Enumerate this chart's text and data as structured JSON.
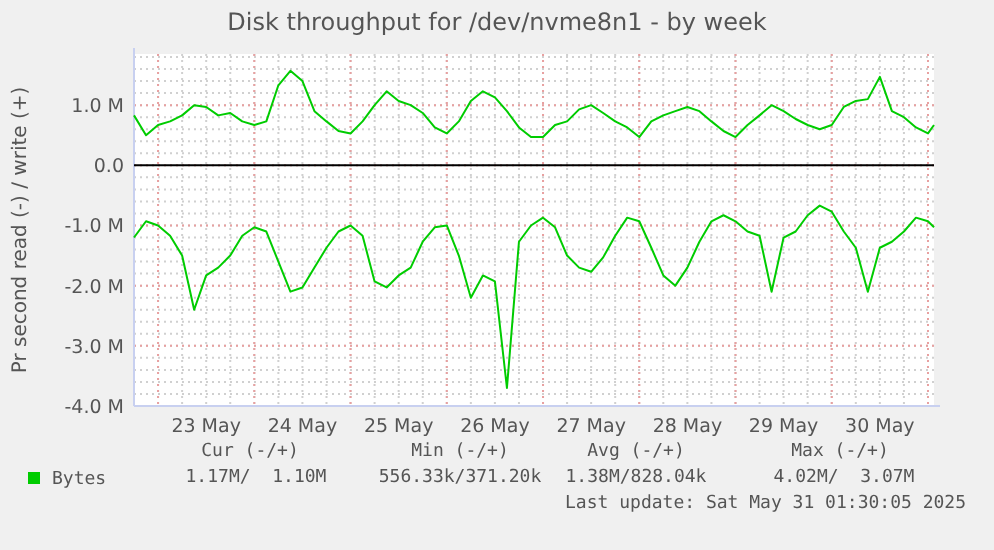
{
  "chart_data": {
    "type": "line",
    "title": "Disk throughput for /dev/nvme8n1 - by week",
    "ylabel": "Pr second read (-) / write (+)",
    "x": [
      "2025-05-22T18:00",
      "2025-05-22T21:00",
      "2025-05-23T00:00",
      "2025-05-23T03:00",
      "2025-05-23T06:00",
      "2025-05-23T09:00",
      "2025-05-23T12:00",
      "2025-05-23T15:00",
      "2025-05-23T18:00",
      "2025-05-23T21:00",
      "2025-05-24T00:00",
      "2025-05-24T03:00",
      "2025-05-24T06:00",
      "2025-05-24T09:00",
      "2025-05-24T12:00",
      "2025-05-24T15:00",
      "2025-05-24T18:00",
      "2025-05-24T21:00",
      "2025-05-25T00:00",
      "2025-05-25T03:00",
      "2025-05-25T06:00",
      "2025-05-25T09:00",
      "2025-05-25T12:00",
      "2025-05-25T15:00",
      "2025-05-25T18:00",
      "2025-05-25T21:00",
      "2025-05-26T00:00",
      "2025-05-26T03:00",
      "2025-05-26T06:00",
      "2025-05-26T09:00",
      "2025-05-26T12:00",
      "2025-05-26T15:00",
      "2025-05-26T18:00",
      "2025-05-26T21:00",
      "2025-05-27T00:00",
      "2025-05-27T03:00",
      "2025-05-27T06:00",
      "2025-05-27T09:00",
      "2025-05-27T12:00",
      "2025-05-27T15:00",
      "2025-05-27T18:00",
      "2025-05-27T21:00",
      "2025-05-28T00:00",
      "2025-05-28T03:00",
      "2025-05-28T06:00",
      "2025-05-28T09:00",
      "2025-05-28T12:00",
      "2025-05-28T15:00",
      "2025-05-28T18:00",
      "2025-05-28T21:00",
      "2025-05-29T00:00",
      "2025-05-29T03:00",
      "2025-05-29T06:00",
      "2025-05-29T09:00",
      "2025-05-29T12:00",
      "2025-05-29T15:00",
      "2025-05-29T18:00",
      "2025-05-29T21:00",
      "2025-05-30T00:00",
      "2025-05-30T03:00",
      "2025-05-30T06:00",
      "2025-05-30T09:00",
      "2025-05-30T12:00",
      "2025-05-30T15:00",
      "2025-05-30T18:00",
      "2025-05-30T21:00",
      "2025-05-31T00:00",
      "2025-05-31T01:30"
    ],
    "series": [
      {
        "name": "Bytes",
        "color": "#00cc00",
        "values": [
          0.83,
          0.5,
          0.67,
          0.73,
          0.83,
          1.0,
          0.97,
          0.83,
          0.87,
          0.73,
          0.67,
          0.73,
          1.33,
          1.57,
          1.4,
          0.9,
          0.73,
          0.57,
          0.53,
          0.73,
          1.0,
          1.23,
          1.07,
          1.0,
          0.87,
          0.63,
          0.53,
          0.73,
          1.07,
          1.23,
          1.13,
          0.9,
          0.63,
          0.47,
          0.47,
          0.67,
          0.73,
          0.93,
          1.0,
          0.87,
          0.73,
          0.63,
          0.47,
          0.73,
          0.83,
          0.9,
          0.97,
          0.9,
          0.73,
          0.57,
          0.47,
          0.67,
          0.83,
          1.0,
          0.9,
          0.77,
          0.67,
          0.6,
          0.67,
          0.97,
          1.07,
          1.1,
          1.47,
          0.9,
          0.8,
          0.63,
          0.53,
          0.67
        ]
      },
      {
        "color": "#00cc00",
        "values": [
          -1.2,
          -0.93,
          -1.0,
          -1.17,
          -1.5,
          -2.4,
          -1.83,
          -1.7,
          -1.5,
          -1.17,
          -1.03,
          -1.1,
          -1.6,
          -2.1,
          -2.03,
          -1.7,
          -1.37,
          -1.1,
          -1.0,
          -1.17,
          -1.93,
          -2.03,
          -1.83,
          -1.7,
          -1.27,
          -1.03,
          -1.0,
          -1.5,
          -2.2,
          -1.83,
          -1.93,
          -3.7,
          -1.27,
          -1.0,
          -0.87,
          -1.03,
          -1.5,
          -1.7,
          -1.77,
          -1.53,
          -1.17,
          -0.87,
          -0.93,
          -1.37,
          -1.83,
          -2.0,
          -1.7,
          -1.27,
          -0.93,
          -0.83,
          -0.93,
          -1.1,
          -1.17,
          -2.1,
          -1.2,
          -1.1,
          -0.83,
          -0.67,
          -0.77,
          -1.1,
          -1.37,
          -2.1,
          -1.37,
          -1.27,
          -1.1,
          -0.87,
          -0.93,
          -1.03
        ]
      }
    ],
    "xlim": [
      "2025-05-22T18:00",
      "2025-05-31T01:30"
    ],
    "xticks": [
      {
        "value": "2025-05-23T00:00",
        "label": null
      },
      {
        "value": "2025-05-23T12:00",
        "label": "23 May"
      },
      {
        "value": "2025-05-24T00:00",
        "label": null
      },
      {
        "value": "2025-05-24T12:00",
        "label": "24 May"
      },
      {
        "value": "2025-05-25T00:00",
        "label": null
      },
      {
        "value": "2025-05-25T12:00",
        "label": "25 May"
      },
      {
        "value": "2025-05-26T00:00",
        "label": null
      },
      {
        "value": "2025-05-26T12:00",
        "label": "26 May"
      },
      {
        "value": "2025-05-27T00:00",
        "label": null
      },
      {
        "value": "2025-05-27T12:00",
        "label": "27 May"
      },
      {
        "value": "2025-05-28T00:00",
        "label": null
      },
      {
        "value": "2025-05-28T12:00",
        "label": "28 May"
      },
      {
        "value": "2025-05-29T00:00",
        "label": null
      },
      {
        "value": "2025-05-29T12:00",
        "label": "29 May"
      },
      {
        "value": "2025-05-30T00:00",
        "label": null
      },
      {
        "value": "2025-05-30T12:00",
        "label": "30 May"
      },
      {
        "value": "2025-05-31T00:00",
        "label": null
      }
    ],
    "ylim": [
      -4,
      1.85
    ],
    "yticks": [
      {
        "value": 1,
        "label": "1.0 M"
      },
      {
        "value": 0,
        "label": "0.0"
      },
      {
        "value": -1,
        "label": "-1.0 M"
      },
      {
        "value": -2,
        "label": "-2.0 M"
      },
      {
        "value": -3,
        "label": "-3.0 M"
      },
      {
        "value": -4,
        "label": "-4.0 M"
      }
    ],
    "grid": true,
    "legend": "bottom",
    "line_style": "solid",
    "ref_lines": [
      {
        "axis": "y",
        "value": 0,
        "color": "#000000"
      }
    ],
    "annotations": [
      "Cur (-/+)",
      "1.17M/  1.10M",
      "Min (-/+)",
      "556.33k/371.20k",
      "Avg (-/+)",
      "1.38M/828.04k",
      "Max (-/+)",
      "4.02M/  3.07M",
      "Last update: Sat May 31 01:30:05 2025"
    ]
  }
}
